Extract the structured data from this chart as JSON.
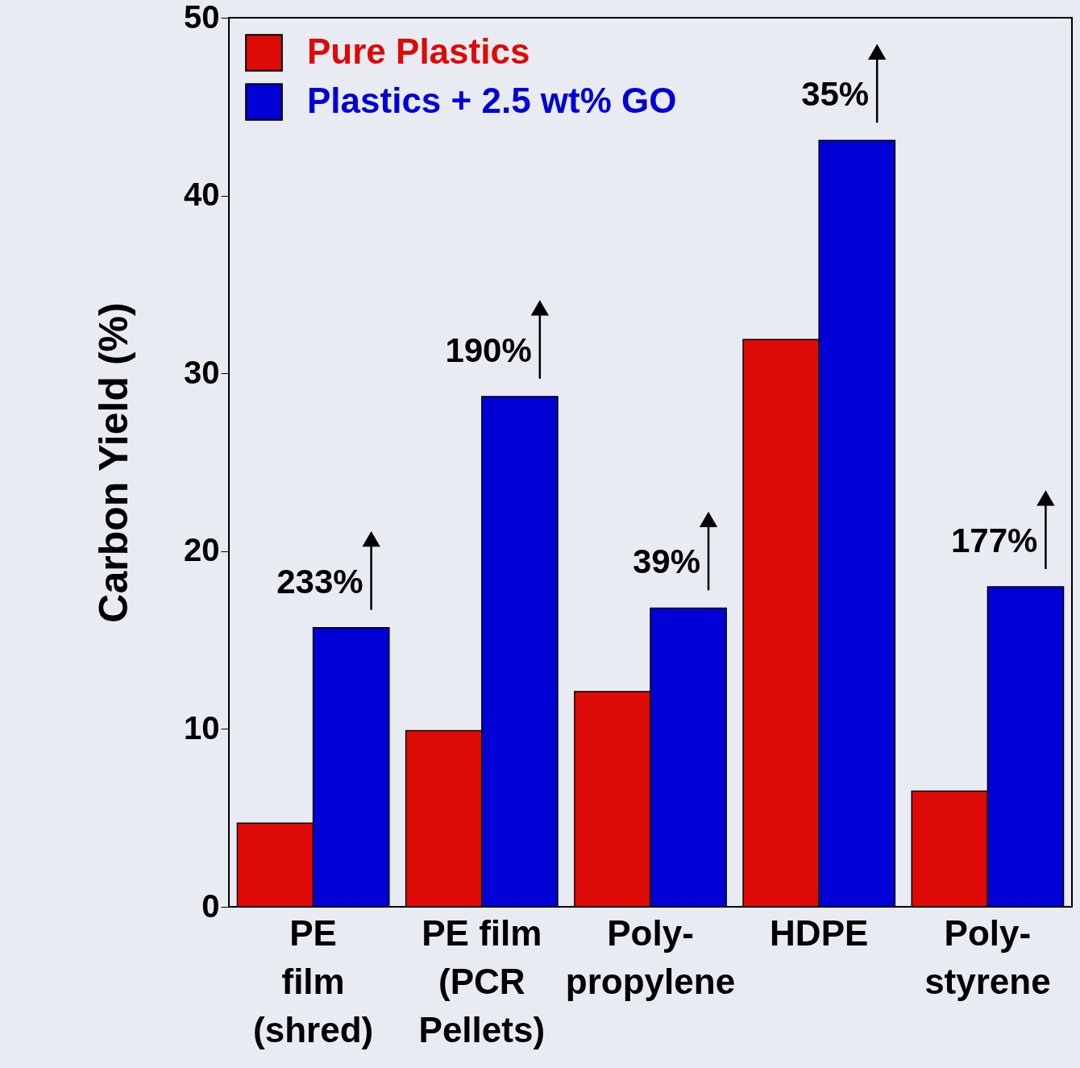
{
  "chart_data": {
    "type": "bar",
    "ylabel": "Carbon Yield (%)",
    "categories": [
      "PE\nfilm\n(shred)",
      "PE film\n(PCR\nPellets)",
      "Poly-\npropylene",
      "HDPE",
      "Poly-\nstyrene"
    ],
    "series": [
      {
        "name": "Pure Plastics",
        "color": "#dd0a07",
        "values": [
          4.7,
          9.9,
          12.1,
          31.9,
          6.5
        ]
      },
      {
        "name": "Plastics + 2.5 wt% GO",
        "color": "#0000d6",
        "values": [
          15.7,
          28.7,
          16.8,
          43.1,
          18.0
        ]
      }
    ],
    "ylim": [
      0,
      50
    ],
    "yticks": [
      0,
      10,
      20,
      30,
      40,
      50
    ],
    "grid": false,
    "legend": "top left",
    "annotations": [
      "233%",
      "190%",
      "39%",
      "35%",
      "177%"
    ]
  }
}
